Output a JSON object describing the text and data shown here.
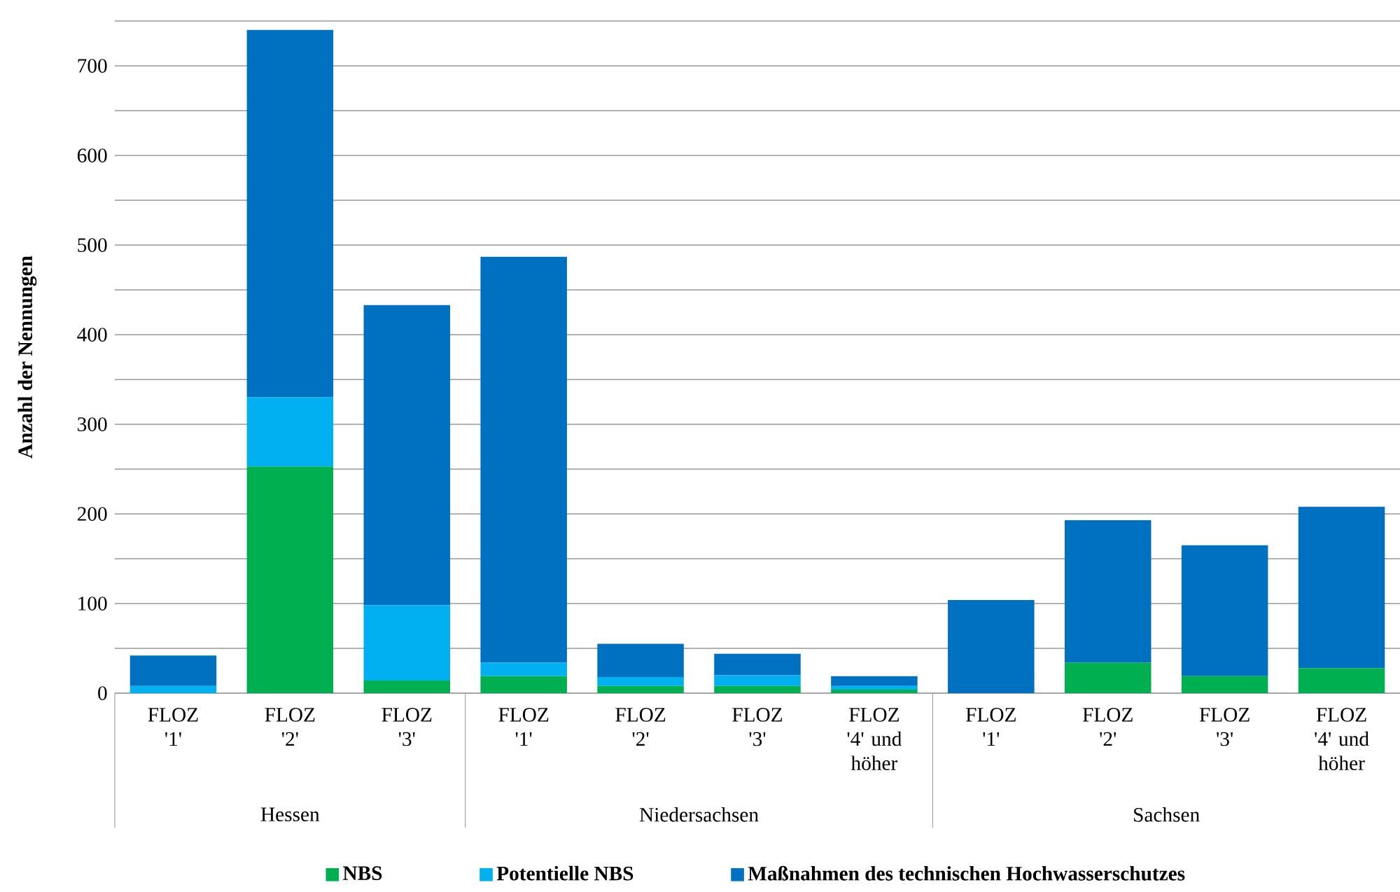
{
  "chart_data": {
    "type": "bar",
    "stacked": true,
    "ylabel": "Anzahl der Nennungen",
    "categories": [
      "FLOZ '1'",
      "FLOZ '2'",
      "FLOZ '3'",
      "FLOZ '1'",
      "FLOZ '2'",
      "FLOZ '3'",
      "FLOZ '4' und höher",
      "FLOZ '1'",
      "FLOZ '2'",
      "FLOZ '3'",
      "FLOZ '4' und höher"
    ],
    "series": [
      {
        "name": "NBS",
        "color": "#00b050",
        "values": [
          0,
          253,
          14,
          19,
          8,
          8,
          4,
          0,
          34,
          19,
          28
        ]
      },
      {
        "name": "Potentielle NBS",
        "color": "#00b0f0",
        "values": [
          8,
          77,
          84,
          15,
          10,
          12,
          4,
          0,
          0,
          0,
          0
        ]
      },
      {
        "name": "Maßnahmen des technischen Hochwasserschutzes",
        "color": "#0070c0",
        "values": [
          34,
          410,
          335,
          453,
          37,
          24,
          11,
          104,
          159,
          146,
          180
        ]
      }
    ],
    "annotations": [
      "Hessen",
      "Niedersachsen",
      "Sachsen"
    ],
    "ylim": [
      0,
      750
    ],
    "yticks": [
      0,
      {
        "value": 50,
        "label": null
      },
      100,
      {
        "value": 150,
        "label": null
      },
      200,
      {
        "value": 250,
        "label": null
      },
      300,
      {
        "value": 350,
        "label": null
      },
      400,
      {
        "value": 450,
        "label": null
      },
      500,
      {
        "value": 550,
        "label": null
      },
      600,
      {
        "value": 650,
        "label": null
      },
      700,
      {
        "value": 750,
        "label": null
      }
    ],
    "grid": "y",
    "legend": "bottom"
  }
}
